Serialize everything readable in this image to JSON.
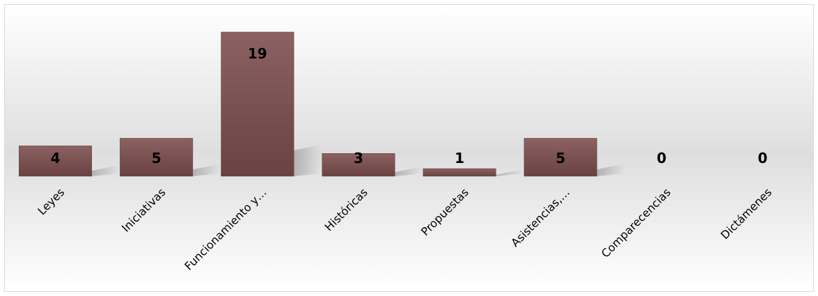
{
  "chart_data": {
    "type": "bar",
    "categories": [
      "Leyes",
      "Iniciativas",
      "Funcionamiento y…",
      "Históricas",
      "Propuestas",
      "Asistencias,…",
      "Comparecencias",
      "Dictámenes"
    ],
    "values": [
      4,
      5,
      19,
      3,
      1,
      5,
      0,
      0
    ],
    "title": "",
    "xlabel": "",
    "ylabel": "",
    "ylim": [
      0,
      19
    ],
    "grid": false,
    "legend": "none",
    "bar_color": "#7a4f4f",
    "bar_color_light": "#8b6161",
    "bar_color_dark": "#6a4242"
  }
}
